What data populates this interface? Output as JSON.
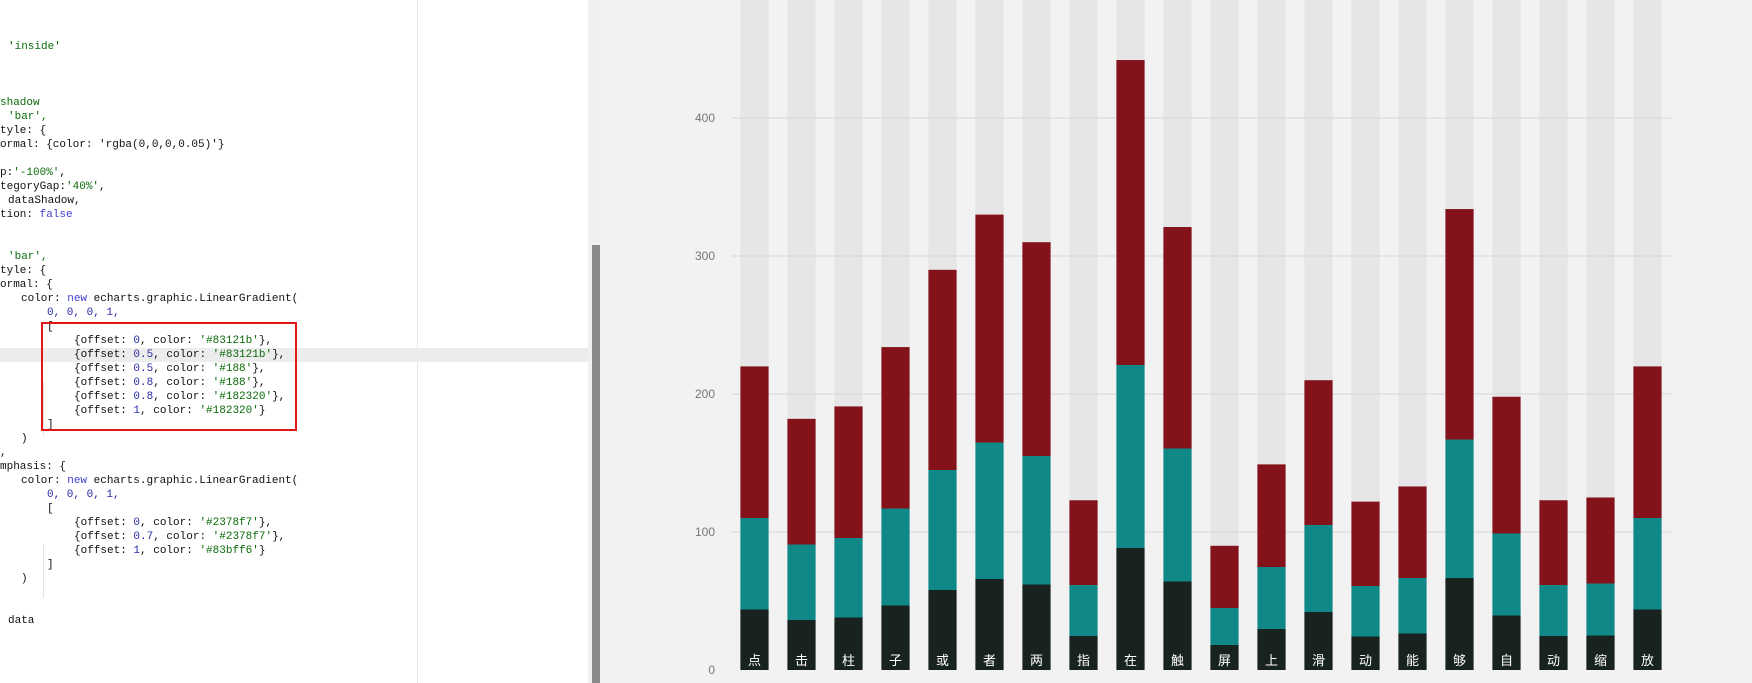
{
  "editor": {
    "highlighted_code_line": 22,
    "lines": [
      [
        {
          "t": "'inside'",
          "c": "str",
          "x": 8
        }
      ],
      [],
      [],
      [],
      [
        {
          "t": "shadow",
          "c": "str",
          "x": 0
        }
      ],
      [
        {
          "t": "'bar',",
          "c": "str",
          "x": 8
        }
      ],
      [
        {
          "t": "tyle: {",
          "c": "plain",
          "x": 0
        }
      ],
      [
        {
          "t": "ormal: {color: 'rgba(0,0,0,0.05)'}",
          "c": "plain",
          "x": 0
        }
      ],
      [],
      [
        {
          "t": "p:",
          "c": "plain",
          "x": 0
        },
        {
          "t": "'-100%'",
          "c": "str"
        },
        {
          "t": ",",
          "c": "plain"
        }
      ],
      [
        {
          "t": "tegoryGap:",
          "c": "plain",
          "x": 0
        },
        {
          "t": "'40%'",
          "c": "str"
        },
        {
          "t": ",",
          "c": "plain"
        }
      ],
      [
        {
          "t": "dataShadow,",
          "c": "plain",
          "x": 8
        }
      ],
      [
        {
          "t": "tion: ",
          "c": "plain",
          "x": 0
        },
        {
          "t": "false",
          "c": "kw"
        }
      ],
      [],
      [],
      [
        {
          "t": "'bar',",
          "c": "str",
          "x": 8
        }
      ],
      [
        {
          "t": "tyle: {",
          "c": "plain",
          "x": 0
        }
      ],
      [
        {
          "t": "ormal: {",
          "c": "plain",
          "x": 0
        }
      ],
      [
        {
          "t": "color: ",
          "c": "plain",
          "x": 21
        },
        {
          "t": "new",
          "c": "kw"
        },
        {
          "t": " echarts.graphic.LinearGradient(",
          "c": "plain"
        }
      ],
      [
        {
          "t": "0, 0, 0, 1,",
          "c": "num",
          "x": 47
        }
      ],
      [
        {
          "t": "[",
          "c": "plain",
          "x": 47
        }
      ],
      [
        {
          "t": "{offset: ",
          "c": "plain",
          "x": 74
        },
        {
          "t": "0",
          "c": "num"
        },
        {
          "t": ", color: ",
          "c": "plain"
        },
        {
          "t": "'#83121b'",
          "c": "str"
        },
        {
          "t": "},",
          "c": "plain"
        }
      ],
      [
        {
          "t": "{offset: ",
          "c": "plain",
          "x": 74
        },
        {
          "t": "0.5",
          "c": "num"
        },
        {
          "t": ", color: ",
          "c": "plain"
        },
        {
          "t": "'#83121b'",
          "c": "str"
        },
        {
          "t": "},",
          "c": "plain"
        }
      ],
      [
        {
          "t": "{offset: ",
          "c": "plain",
          "x": 74
        },
        {
          "t": "0.5",
          "c": "num"
        },
        {
          "t": ", color: ",
          "c": "plain"
        },
        {
          "t": "'#188'",
          "c": "str"
        },
        {
          "t": "},",
          "c": "plain"
        }
      ],
      [
        {
          "t": "{offset: ",
          "c": "plain",
          "x": 74
        },
        {
          "t": "0.8",
          "c": "num"
        },
        {
          "t": ", color: ",
          "c": "plain"
        },
        {
          "t": "'#188'",
          "c": "str"
        },
        {
          "t": "},",
          "c": "plain"
        }
      ],
      [
        {
          "t": "{offset: ",
          "c": "plain",
          "x": 74
        },
        {
          "t": "0.8",
          "c": "num"
        },
        {
          "t": ", color: ",
          "c": "plain"
        },
        {
          "t": "'#182320'",
          "c": "str"
        },
        {
          "t": "},",
          "c": "plain"
        }
      ],
      [
        {
          "t": "{offset: ",
          "c": "plain",
          "x": 74
        },
        {
          "t": "1",
          "c": "num"
        },
        {
          "t": ", color: ",
          "c": "plain"
        },
        {
          "t": "'#182320'",
          "c": "str"
        },
        {
          "t": "}",
          "c": "plain"
        }
      ],
      [
        {
          "t": "]",
          "c": "plain",
          "x": 47
        }
      ],
      [
        {
          "t": ")",
          "c": "plain",
          "x": 21
        }
      ],
      [
        {
          "t": ",",
          "c": "plain",
          "x": 0
        }
      ],
      [
        {
          "t": "mphasis: {",
          "c": "plain",
          "x": 0
        }
      ],
      [
        {
          "t": "color: ",
          "c": "plain",
          "x": 21
        },
        {
          "t": "new",
          "c": "kw"
        },
        {
          "t": " echarts.graphic.LinearGradient(",
          "c": "plain"
        }
      ],
      [
        {
          "t": "0, 0, 0, 1,",
          "c": "num",
          "x": 47
        }
      ],
      [
        {
          "t": "[",
          "c": "plain",
          "x": 47
        }
      ],
      [
        {
          "t": "{offset: ",
          "c": "plain",
          "x": 74
        },
        {
          "t": "0",
          "c": "num"
        },
        {
          "t": ", color: ",
          "c": "plain"
        },
        {
          "t": "'#2378f7'",
          "c": "str"
        },
        {
          "t": "},",
          "c": "plain"
        }
      ],
      [
        {
          "t": "{offset: ",
          "c": "plain",
          "x": 74
        },
        {
          "t": "0.7",
          "c": "num"
        },
        {
          "t": ", color: ",
          "c": "plain"
        },
        {
          "t": "'#2378f7'",
          "c": "str"
        },
        {
          "t": "},",
          "c": "plain"
        }
      ],
      [
        {
          "t": "{offset: ",
          "c": "plain",
          "x": 74
        },
        {
          "t": "1",
          "c": "num"
        },
        {
          "t": ", color: ",
          "c": "plain"
        },
        {
          "t": "'#83bff6'",
          "c": "str"
        },
        {
          "t": "}",
          "c": "plain"
        }
      ],
      [
        {
          "t": "]",
          "c": "plain",
          "x": 47
        }
      ],
      [
        {
          "t": ")",
          "c": "plain",
          "x": 21
        }
      ],
      [],
      [],
      [
        {
          "t": "data",
          "c": "plain",
          "x": 8
        }
      ],
      [],
      [],
      []
    ]
  },
  "colors": {
    "top_segment": "#83121b",
    "middle_segment": "#118888",
    "bottom_segment": "#182320",
    "shadow_bar": "#e6e6e6",
    "gridline": "#d6d6d6",
    "code_highlight_box": "#e01818"
  },
  "chart_data": {
    "type": "bar",
    "categories": [
      "点",
      "击",
      "柱",
      "子",
      "或",
      "者",
      "两",
      "指",
      "在",
      "触",
      "屏",
      "上",
      "滑",
      "动",
      "能",
      "够",
      "自",
      "动",
      "缩",
      "放"
    ],
    "values": [
      220,
      182,
      191,
      234,
      290,
      330,
      310,
      123,
      442,
      321,
      90,
      149,
      210,
      122,
      133,
      334,
      198,
      123,
      125,
      220
    ],
    "gradient_stops": [
      {
        "offset": 0,
        "color": "#83121b"
      },
      {
        "offset": 0.5,
        "color": "#83121b"
      },
      {
        "offset": 0.5,
        "color": "#118888"
      },
      {
        "offset": 0.8,
        "color": "#118888"
      },
      {
        "offset": 0.8,
        "color": "#182320"
      },
      {
        "offset": 1,
        "color": "#182320"
      }
    ],
    "y_ticks": [
      "0",
      "100",
      "200",
      "300",
      "400"
    ],
    "ylim": [
      0,
      500
    ],
    "shadow_bars": true,
    "grid": true,
    "category_labels_inside_bars": true
  }
}
